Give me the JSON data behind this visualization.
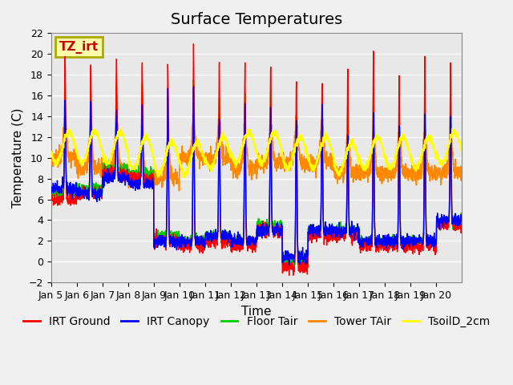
{
  "title": "Surface Temperatures",
  "xlabel": "Time",
  "ylabel": "Temperature (C)",
  "ylim": [
    -2,
    22
  ],
  "yticks": [
    -2,
    0,
    2,
    4,
    6,
    8,
    10,
    12,
    14,
    16,
    18,
    20,
    22
  ],
  "xtick_labels": [
    "Jan 5",
    "Jan 6",
    "Jan 7",
    "Jan 8",
    "Jan 9",
    "Jan 10",
    "Jan 11",
    "Jan 12",
    "Jan 13",
    "Jan 14",
    "Jan 15",
    "Jan 16",
    "Jan 17",
    "Jan 18",
    "Jan 19",
    "Jan 20"
  ],
  "series_colors": {
    "IRT Ground": "#ff0000",
    "IRT Canopy": "#0000ff",
    "Floor Tair": "#00cc00",
    "Tower TAir": "#ff8800",
    "TsoilD_2cm": "#ffff00"
  },
  "legend_labels": [
    "IRT Ground",
    "IRT Canopy",
    "Floor Tair",
    "Tower TAir",
    "TsoilD_2cm"
  ],
  "annotation_text": "TZ_irt",
  "annotation_color": "#cc0000",
  "plot_bg_color": "#e8e8e8",
  "title_fontsize": 14,
  "axis_fontsize": 11,
  "legend_fontsize": 10
}
